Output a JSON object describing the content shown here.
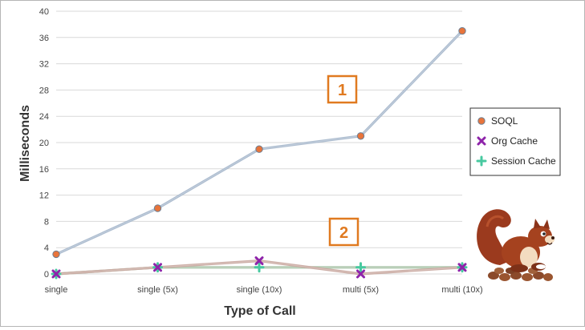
{
  "chart_data": {
    "type": "line",
    "title": "",
    "xlabel": "Type of Call",
    "ylabel": "Milliseconds",
    "categories": [
      "single",
      "single (5x)",
      "single (10x)",
      "multi (5x)",
      "multi (10x)"
    ],
    "ylim": [
      0,
      40
    ],
    "yticks": [
      0,
      4,
      8,
      12,
      16,
      20,
      24,
      28,
      32,
      36,
      40
    ],
    "grid": true,
    "legend_position": "right",
    "series": [
      {
        "name": "SOQL",
        "values": [
          3,
          10,
          19,
          21,
          37
        ],
        "color": "#e8743b",
        "line_color": "#a8b8cc",
        "marker": "circle"
      },
      {
        "name": "Org Cache",
        "values": [
          0,
          1,
          2,
          0,
          1
        ],
        "color": "#8e24aa",
        "line_color": "#c9a9a0",
        "marker": "x"
      },
      {
        "name": "Session Cache",
        "values": [
          0,
          1,
          1,
          1,
          1
        ],
        "color": "#48c9a0",
        "line_color": "#a9c4a8",
        "marker": "plus"
      }
    ],
    "annotations": [
      "1",
      "2"
    ]
  },
  "colors": {
    "accent": "#e07a20",
    "grid": "#d9d9d9"
  },
  "mascot": {
    "icon": "squirrel-icon"
  }
}
